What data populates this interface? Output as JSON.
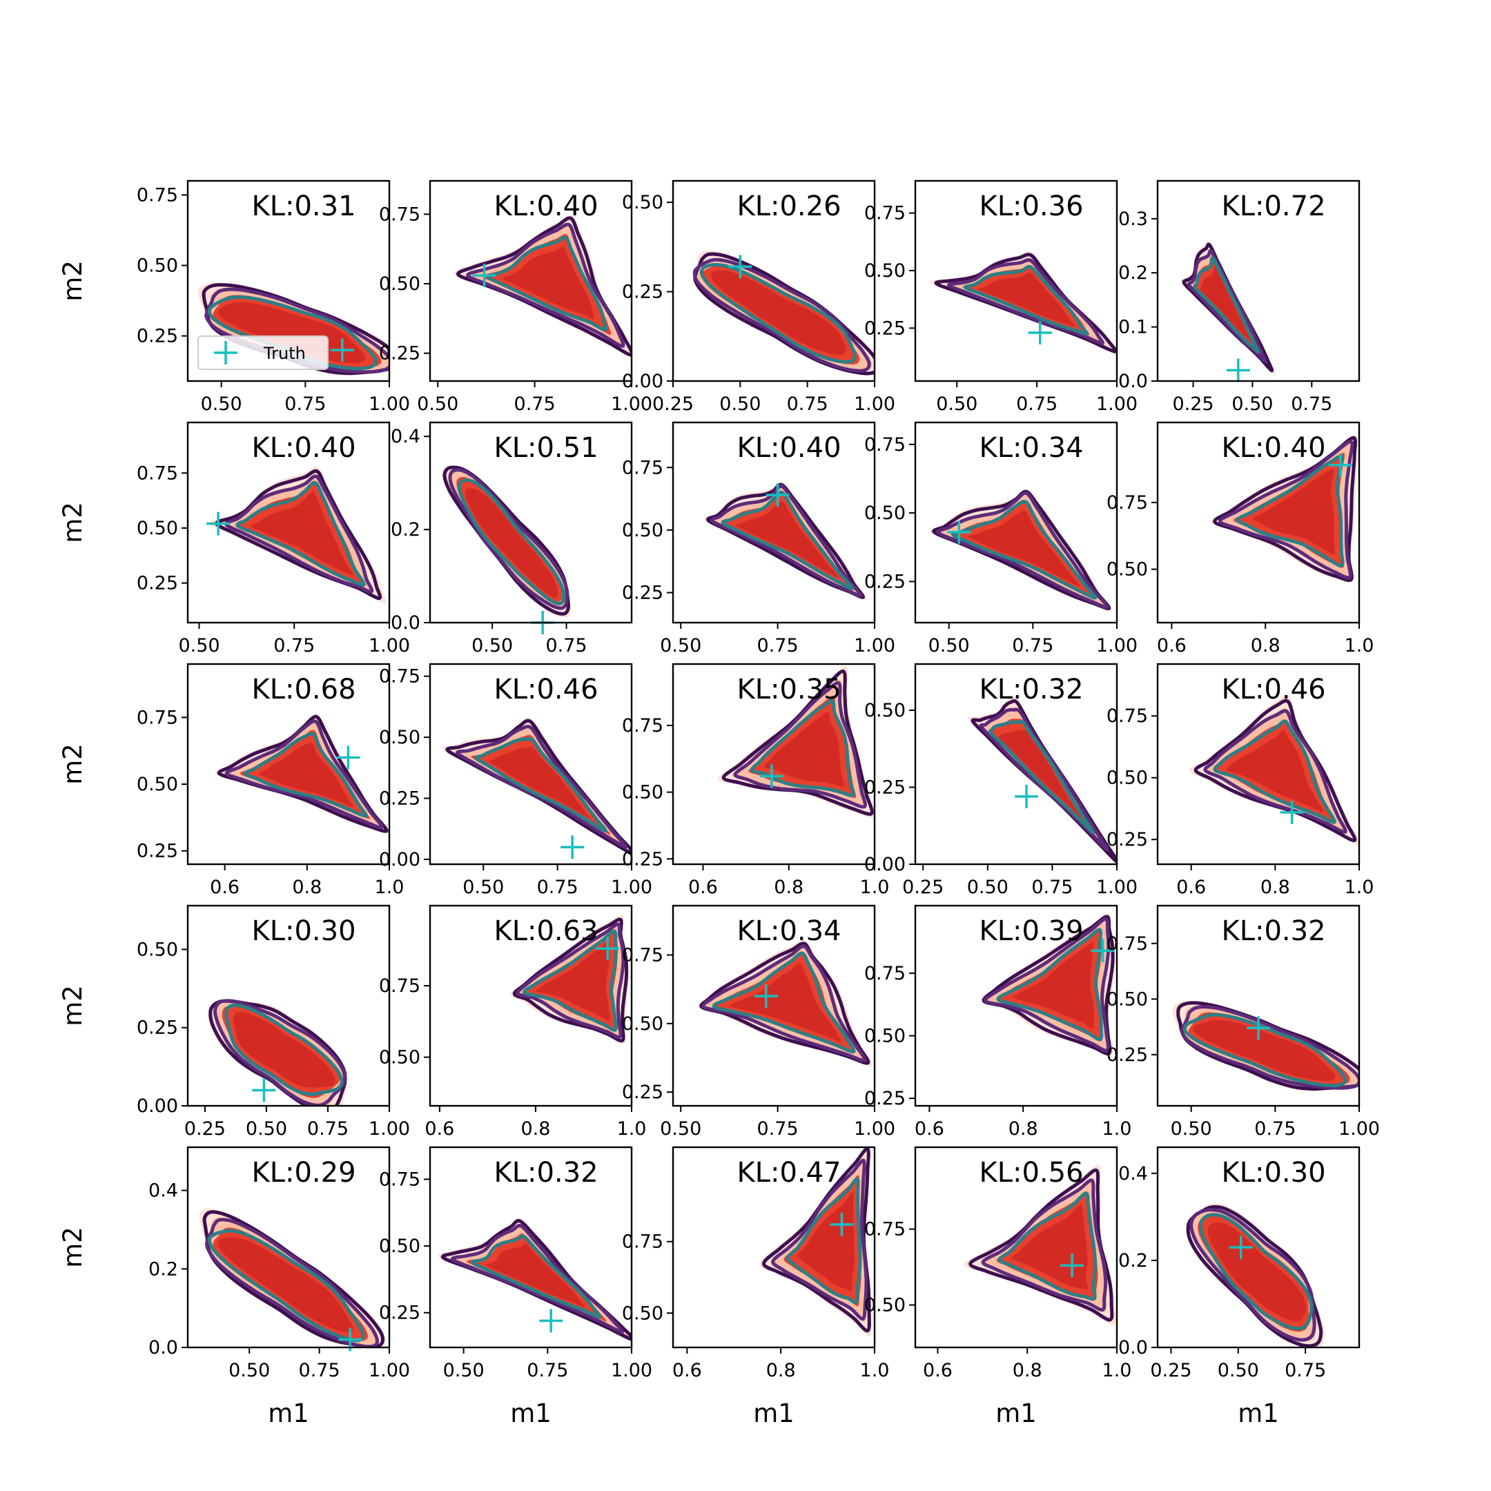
{
  "chart_data": {
    "type": "grid of 2D density contour plots (5 x 5)",
    "xlabel": "m1",
    "ylabel": "m2",
    "legend": {
      "entries": [
        "Truth"
      ],
      "location": "lower-left of first panel",
      "marker": "+"
    },
    "colors": {
      "fill_levels": [
        "#fde3d8",
        "#fcbea5",
        "#e9402e",
        "#d42a24"
      ],
      "contour_outer": "#3d0f4f",
      "contour_mid": "#5e2b7a",
      "contour_inner": "#2d7f86",
      "truth_marker": "#17bfbf"
    },
    "panels": [
      {
        "kl": "KL:0.31",
        "xticks": [
          "0.50",
          "0.75",
          "1.00"
        ],
        "yticks": [
          "0.25",
          "0.50",
          "0.75"
        ],
        "xlim": [
          0.4,
          1.0
        ],
        "ylim": [
          0.09,
          0.8
        ],
        "truth": [
          0.86,
          0.2
        ],
        "shape": {
          "type": "diag",
          "x": [
            0.44,
            0.99
          ],
          "y": [
            0.38,
            0.15
          ],
          "w": 0.09
        }
      },
      {
        "kl": "KL:0.40",
        "xticks": [
          "0.50",
          "0.75",
          "1.00"
        ],
        "yticks": [
          "0.25",
          "0.50",
          "0.75"
        ],
        "xlim": [
          0.48,
          1.0
        ],
        "ylim": [
          0.15,
          0.87
        ],
        "truth": [
          0.62,
          0.53
        ],
        "shape": {
          "type": "tri",
          "pts": [
            [
              0.58,
              0.53
            ],
            [
              0.84,
              0.72
            ],
            [
              0.98,
              0.27
            ]
          ]
        }
      },
      {
        "kl": "KL:0.26",
        "xticks": [
          "0.25",
          "0.50",
          "0.75",
          "1.00"
        ],
        "yticks": [
          "0.00",
          "0.25",
          "0.50"
        ],
        "xlim": [
          0.25,
          1.0
        ],
        "ylim": [
          0.0,
          0.56
        ],
        "truth": [
          0.5,
          0.32
        ],
        "shape": {
          "type": "diag",
          "x": [
            0.33,
            0.98
          ],
          "y": [
            0.33,
            0.05
          ],
          "w": 0.07
        }
      },
      {
        "kl": "KL:0.36",
        "xticks": [
          "0.50",
          "0.75",
          "1.00"
        ],
        "yticks": [
          "0.25",
          "0.50",
          "0.75"
        ],
        "xlim": [
          0.37,
          1.0
        ],
        "ylim": [
          0.02,
          0.89
        ],
        "truth": [
          0.76,
          0.23
        ],
        "shape": {
          "type": "tri",
          "pts": [
            [
              0.46,
              0.44
            ],
            [
              0.73,
              0.56
            ],
            [
              0.98,
              0.16
            ]
          ]
        }
      },
      {
        "kl": "KL:0.72",
        "xticks": [
          "0.25",
          "0.50",
          "0.75"
        ],
        "yticks": [
          "0.0",
          "0.1",
          "0.2",
          "0.3"
        ],
        "xlim": [
          0.1,
          0.95
        ],
        "ylim": [
          0.0,
          0.37
        ],
        "truth": [
          0.44,
          0.02
        ],
        "shape": {
          "type": "tri",
          "pts": [
            [
              0.22,
              0.18
            ],
            [
              0.32,
              0.25
            ],
            [
              0.58,
              0.02
            ]
          ]
        }
      },
      {
        "kl": "KL:0.40",
        "xticks": [
          "0.50",
          "0.75",
          "1.00"
        ],
        "yticks": [
          "0.25",
          "0.50",
          "0.75"
        ],
        "xlim": [
          0.47,
          1.0
        ],
        "ylim": [
          0.07,
          0.98
        ],
        "truth": [
          0.55,
          0.52
        ],
        "shape": {
          "type": "tri",
          "pts": [
            [
              0.55,
              0.52
            ],
            [
              0.81,
              0.76
            ],
            [
              0.98,
              0.17
            ]
          ]
        }
      },
      {
        "kl": "KL:0.51",
        "xticks": [
          "0.50",
          "0.75"
        ],
        "yticks": [
          "0.0",
          "0.2",
          "0.4"
        ],
        "xlim": [
          0.29,
          0.97
        ],
        "ylim": [
          0.0,
          0.43
        ],
        "truth": [
          0.67,
          0.0
        ],
        "shape": {
          "type": "diag",
          "x": [
            0.36,
            0.76
          ],
          "y": [
            0.32,
            0.03
          ],
          "w": 0.05
        }
      },
      {
        "kl": "KL:0.40",
        "xticks": [
          "0.50",
          "0.75",
          "1.00"
        ],
        "yticks": [
          "0.25",
          "0.50",
          "0.75"
        ],
        "xlim": [
          0.48,
          1.0
        ],
        "ylim": [
          0.13,
          0.93
        ],
        "truth": [
          0.75,
          0.64
        ],
        "shape": {
          "type": "tri",
          "pts": [
            [
              0.57,
              0.54
            ],
            [
              0.76,
              0.68
            ],
            [
              0.98,
              0.22
            ]
          ]
        }
      },
      {
        "kl": "KL:0.34",
        "xticks": [
          "0.50",
          "0.75",
          "1.00"
        ],
        "yticks": [
          "0.25",
          "0.50",
          "0.75"
        ],
        "xlim": [
          0.4,
          1.0
        ],
        "ylim": [
          0.1,
          0.83
        ],
        "truth": [
          0.53,
          0.43
        ],
        "shape": {
          "type": "tri",
          "pts": [
            [
              0.46,
              0.43
            ],
            [
              0.73,
              0.57
            ],
            [
              0.98,
              0.15
            ]
          ]
        }
      },
      {
        "kl": "KL:0.40",
        "xticks": [
          "0.6",
          "0.8",
          "1.0"
        ],
        "yticks": [
          "0.50",
          "0.75"
        ],
        "xlim": [
          0.57,
          1.0
        ],
        "ylim": [
          0.3,
          1.05
        ],
        "truth": [
          0.96,
          0.89
        ],
        "shape": {
          "type": "tri",
          "pts": [
            [
              0.7,
              0.68
            ],
            [
              0.98,
              0.97
            ],
            [
              0.98,
              0.47
            ]
          ]
        }
      },
      {
        "kl": "KL:0.68",
        "xticks": [
          "0.6",
          "0.8",
          "1.0"
        ],
        "yticks": [
          "0.25",
          "0.50",
          "0.75"
        ],
        "xlim": [
          0.51,
          1.0
        ],
        "ylim": [
          0.2,
          0.95
        ],
        "truth": [
          0.9,
          0.6
        ],
        "shape": {
          "type": "tri",
          "pts": [
            [
              0.6,
              0.54
            ],
            [
              0.82,
              0.73
            ],
            [
              0.98,
              0.34
            ]
          ]
        }
      },
      {
        "kl": "KL:0.46",
        "xticks": [
          "0.50",
          "0.75",
          "1.00"
        ],
        "yticks": [
          "0.00",
          "0.25",
          "0.50",
          "0.75"
        ],
        "xlim": [
          0.32,
          1.0
        ],
        "ylim": [
          -0.02,
          0.8
        ],
        "truth": [
          0.8,
          0.05
        ],
        "shape": {
          "type": "tri",
          "pts": [
            [
              0.4,
              0.44
            ],
            [
              0.66,
              0.54
            ],
            [
              0.98,
              0.05
            ]
          ]
        }
      },
      {
        "kl": "KL:0.35",
        "xticks": [
          "0.6",
          "0.8",
          "1.0"
        ],
        "yticks": [
          "0.25",
          "0.50",
          "0.75"
        ],
        "xlim": [
          0.53,
          1.0
        ],
        "ylim": [
          0.23,
          0.98
        ],
        "truth": [
          0.76,
          0.56
        ],
        "shape": {
          "type": "tri",
          "pts": [
            [
              0.66,
              0.56
            ],
            [
              0.92,
              0.92
            ],
            [
              0.98,
              0.44
            ]
          ]
        }
      },
      {
        "kl": "KL:0.32",
        "xticks": [
          "0.25",
          "0.50",
          "0.75",
          "1.00"
        ],
        "yticks": [
          "0.00",
          "0.25",
          "0.50"
        ],
        "xlim": [
          0.22,
          1.0
        ],
        "ylim": [
          0.0,
          0.65
        ],
        "truth": [
          0.65,
          0.22
        ],
        "shape": {
          "type": "tri",
          "pts": [
            [
              0.45,
              0.46
            ],
            [
              0.62,
              0.51
            ],
            [
              0.98,
              0.03
            ]
          ]
        }
      },
      {
        "kl": "KL:0.46",
        "xticks": [
          "0.6",
          "0.8",
          "1.0"
        ],
        "yticks": [
          "0.25",
          "0.50",
          "0.75"
        ],
        "xlim": [
          0.52,
          1.0
        ],
        "ylim": [
          0.15,
          0.96
        ],
        "truth": [
          0.84,
          0.36
        ],
        "shape": {
          "type": "tri",
          "pts": [
            [
              0.61,
              0.53
            ],
            [
              0.83,
              0.8
            ],
            [
              0.98,
              0.26
            ]
          ]
        }
      },
      {
        "kl": "KL:0.30",
        "xticks": [
          "0.25",
          "0.50",
          "0.75",
          "1.00"
        ],
        "yticks": [
          "0.00",
          "0.25",
          "0.50"
        ],
        "xlim": [
          0.18,
          1.0
        ],
        "ylim": [
          0.0,
          0.64
        ],
        "truth": [
          0.49,
          0.05
        ],
        "shape": {
          "type": "diag",
          "x": [
            0.3,
            0.82
          ],
          "y": [
            0.3,
            0.04
          ],
          "w": 0.1
        }
      },
      {
        "kl": "KL:0.63",
        "xticks": [
          "0.6",
          "0.8",
          "1.0"
        ],
        "yticks": [
          "0.50",
          "0.75"
        ],
        "xlim": [
          0.58,
          1.0
        ],
        "ylim": [
          0.33,
          1.03
        ],
        "truth": [
          0.95,
          0.88
        ],
        "shape": {
          "type": "tri",
          "pts": [
            [
              0.75,
              0.72
            ],
            [
              0.98,
              0.99
            ],
            [
              0.98,
              0.56
            ]
          ]
        }
      },
      {
        "kl": "KL:0.34",
        "xticks": [
          "0.50",
          "0.75",
          "1.00"
        ],
        "yticks": [
          "0.25",
          "0.50",
          "0.75"
        ],
        "xlim": [
          0.48,
          1.0
        ],
        "ylim": [
          0.2,
          0.93
        ],
        "truth": [
          0.72,
          0.6
        ],
        "shape": {
          "type": "tri",
          "pts": [
            [
              0.55,
              0.56
            ],
            [
              0.82,
              0.8
            ],
            [
              0.98,
              0.36
            ]
          ]
        }
      },
      {
        "kl": "KL:0.39",
        "xticks": [
          "0.6",
          "0.8",
          "1.0"
        ],
        "yticks": [
          "0.25",
          "0.50",
          "0.75"
        ],
        "xlim": [
          0.57,
          1.0
        ],
        "ylim": [
          0.22,
          1.02
        ],
        "truth": [
          0.97,
          0.84
        ],
        "shape": {
          "type": "tri",
          "pts": [
            [
              0.72,
              0.64
            ],
            [
              0.98,
              0.98
            ],
            [
              0.98,
              0.44
            ]
          ]
        }
      },
      {
        "kl": "KL:0.32",
        "xticks": [
          "0.50",
          "0.75",
          "1.00"
        ],
        "yticks": [
          "0.25",
          "0.50",
          "0.75"
        ],
        "xlim": [
          0.4,
          1.0
        ],
        "ylim": [
          0.02,
          0.92
        ],
        "truth": [
          0.7,
          0.37
        ],
        "shape": {
          "type": "diag",
          "x": [
            0.46,
            0.98
          ],
          "y": [
            0.43,
            0.12
          ],
          "w": 0.1
        }
      },
      {
        "kl": "KL:0.29",
        "xticks": [
          "0.50",
          "0.75",
          "1.00"
        ],
        "yticks": [
          "0.0",
          "0.2",
          "0.4"
        ],
        "xlim": [
          0.28,
          1.0
        ],
        "ylim": [
          0.0,
          0.51
        ],
        "truth": [
          0.86,
          0.02
        ],
        "shape": {
          "type": "diag",
          "x": [
            0.33,
            0.94
          ],
          "y": [
            0.31,
            0.02
          ],
          "w": 0.07
        }
      },
      {
        "kl": "KL:0.32",
        "xticks": [
          "0.50",
          "0.75",
          "1.00"
        ],
        "yticks": [
          "0.25",
          "0.50",
          "0.75"
        ],
        "xlim": [
          0.4,
          1.0
        ],
        "ylim": [
          0.12,
          0.87
        ],
        "truth": [
          0.76,
          0.22
        ],
        "shape": {
          "type": "tri",
          "pts": [
            [
              0.47,
              0.45
            ],
            [
              0.67,
              0.58
            ],
            [
              0.98,
              0.17
            ]
          ]
        }
      },
      {
        "kl": "KL:0.47",
        "xticks": [
          "0.6",
          "0.8",
          "1.0"
        ],
        "yticks": [
          "0.50",
          "0.75"
        ],
        "xlim": [
          0.57,
          1.0
        ],
        "ylim": [
          0.38,
          1.08
        ],
        "truth": [
          0.93,
          0.81
        ],
        "shape": {
          "type": "tri",
          "pts": [
            [
              0.78,
              0.68
            ],
            [
              0.98,
              1.05
            ],
            [
              0.98,
              0.46
            ]
          ]
        }
      },
      {
        "kl": "KL:0.56",
        "xticks": [
          "0.6",
          "0.8",
          "1.0"
        ],
        "yticks": [
          "0.50",
          "0.75"
        ],
        "xlim": [
          0.55,
          1.0
        ],
        "ylim": [
          0.36,
          1.02
        ],
        "truth": [
          0.9,
          0.63
        ],
        "shape": {
          "type": "tri",
          "pts": [
            [
              0.69,
              0.64
            ],
            [
              0.95,
              0.93
            ],
            [
              0.98,
              0.46
            ]
          ]
        }
      },
      {
        "kl": "KL:0.30",
        "xticks": [
          "0.25",
          "0.50",
          "0.75"
        ],
        "yticks": [
          "0.0",
          "0.2",
          "0.4"
        ],
        "xlim": [
          0.2,
          0.95
        ],
        "ylim": [
          0.0,
          0.46
        ],
        "truth": [
          0.51,
          0.23
        ],
        "shape": {
          "type": "diag",
          "x": [
            0.34,
            0.8
          ],
          "y": [
            0.3,
            0.04
          ],
          "w": 0.08
        }
      }
    ]
  }
}
